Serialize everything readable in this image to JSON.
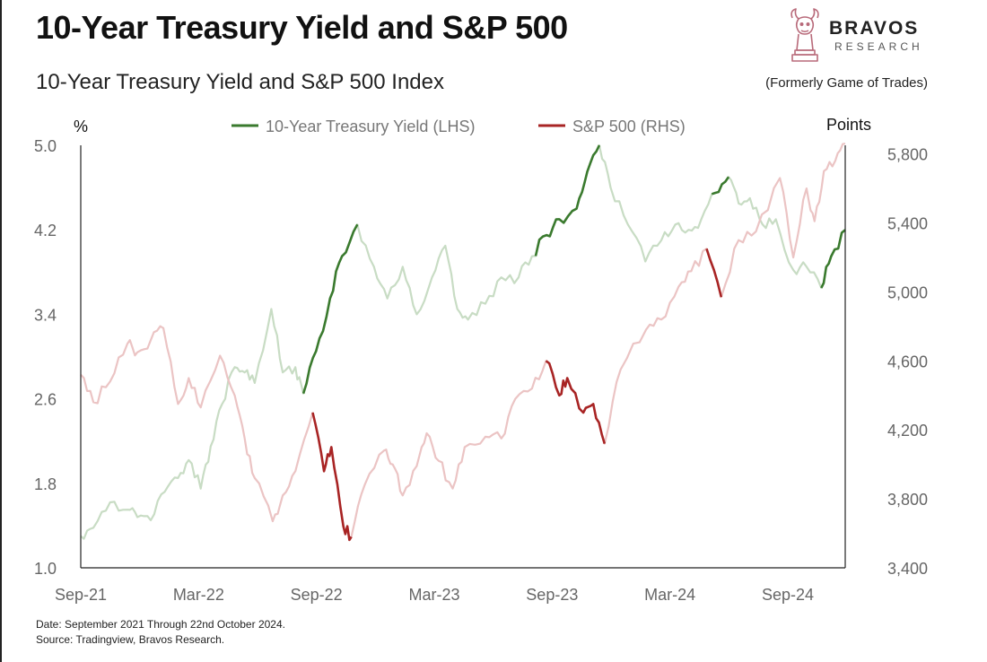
{
  "header": {
    "title": "10-Year Treasury Yield and S&P 500",
    "subtitle": "10-Year Treasury Yield and S&P 500 Index"
  },
  "brand": {
    "name": "BRAVOS",
    "sub": "RESEARCH",
    "formerly": "(Formerly Game of Trades)",
    "color": "#b86a7a"
  },
  "footer": {
    "date_note": "Date: September 2021 Through 22nd October 2024.",
    "source_note": "Source: Tradingview, Bravos Research."
  },
  "chart_data": {
    "type": "line",
    "title": "10-Year Treasury Yield and S&P 500 Index",
    "y_left_label": "%",
    "y_right_label": "Points",
    "y_left_ticks": [
      "5.0",
      "4.2",
      "3.4",
      "2.6",
      "1.8",
      "1.0"
    ],
    "y_left_range": [
      1.0,
      5.0
    ],
    "y_right_ticks": [
      "5,800",
      "5,400",
      "5,000",
      "4,600",
      "4,200",
      "3,800",
      "3,400"
    ],
    "y_right_range": [
      3400,
      5850
    ],
    "x_ticks": [
      "Sep-21",
      "Mar-22",
      "Sep-22",
      "Mar-23",
      "Sep-23",
      "Mar-24",
      "Sep-24"
    ],
    "x_range": [
      "2021-09-01",
      "2024-10-22"
    ],
    "legend_position": "top-center",
    "grid": false,
    "series": [
      {
        "name": "10-Year Treasury Yield (LHS)",
        "axis": "left",
        "color": "#3a7a2e",
        "faded_color": "#c8dcc4",
        "highlight_ranges": [
          [
            "2022-08-01",
            "2022-10-21"
          ],
          [
            "2023-07-15",
            "2023-10-19"
          ],
          [
            "2024-04-01",
            "2024-04-30"
          ],
          [
            "2024-09-16",
            "2024-10-22"
          ]
        ],
        "x": [
          "2021-09-01",
          "2021-09-20",
          "2021-10-15",
          "2021-11-10",
          "2021-11-25",
          "2021-12-15",
          "2022-01-05",
          "2022-01-25",
          "2022-02-10",
          "2022-02-28",
          "2022-03-15",
          "2022-04-01",
          "2022-04-20",
          "2022-05-05",
          "2022-05-20",
          "2022-06-14",
          "2022-07-01",
          "2022-07-20",
          "2022-08-01",
          "2022-08-20",
          "2022-09-10",
          "2022-09-28",
          "2022-10-21",
          "2022-11-15",
          "2022-12-05",
          "2022-12-28",
          "2023-01-18",
          "2023-02-10",
          "2023-03-02",
          "2023-03-20",
          "2023-04-05",
          "2023-05-01",
          "2023-05-25",
          "2023-06-20",
          "2023-07-10",
          "2023-08-01",
          "2023-08-20",
          "2023-09-15",
          "2023-10-01",
          "2023-10-19",
          "2023-11-05",
          "2023-12-01",
          "2023-12-27",
          "2024-01-20",
          "2024-02-10",
          "2024-03-01",
          "2024-03-20",
          "2024-04-10",
          "2024-04-30",
          "2024-05-15",
          "2024-06-01",
          "2024-06-20",
          "2024-07-10",
          "2024-08-05",
          "2024-08-25",
          "2024-09-16",
          "2024-10-01",
          "2024-10-22"
        ],
        "values": [
          1.3,
          1.38,
          1.62,
          1.55,
          1.48,
          1.45,
          1.72,
          1.85,
          2.02,
          1.75,
          2.15,
          2.55,
          2.9,
          2.85,
          2.75,
          3.45,
          2.85,
          2.9,
          2.65,
          3.05,
          3.55,
          3.95,
          4.25,
          3.85,
          3.55,
          3.85,
          3.4,
          3.75,
          4.05,
          3.45,
          3.35,
          3.5,
          3.75,
          3.75,
          3.95,
          4.15,
          4.3,
          4.4,
          4.75,
          5.0,
          4.6,
          4.25,
          3.9,
          4.1,
          4.25,
          4.2,
          4.3,
          4.55,
          4.7,
          4.45,
          4.5,
          4.25,
          4.3,
          3.82,
          3.85,
          3.65,
          3.95,
          4.2
        ]
      },
      {
        "name": "S&P 500 (RHS)",
        "axis": "right",
        "color": "#a82424",
        "faded_color": "#ebc4c4",
        "highlight_ranges": [
          [
            "2022-08-15",
            "2022-10-12"
          ],
          [
            "2023-07-31",
            "2023-10-27"
          ],
          [
            "2024-03-28",
            "2024-04-19"
          ]
        ],
        "x": [
          "2021-09-01",
          "2021-09-20",
          "2021-10-15",
          "2021-11-10",
          "2021-11-25",
          "2021-12-15",
          "2022-01-03",
          "2022-01-25",
          "2022-02-10",
          "2022-02-28",
          "2022-03-29",
          "2022-04-20",
          "2022-05-05",
          "2022-05-20",
          "2022-06-16",
          "2022-07-01",
          "2022-07-20",
          "2022-08-15",
          "2022-09-01",
          "2022-09-12",
          "2022-09-30",
          "2022-10-12",
          "2022-11-01",
          "2022-11-30",
          "2022-12-13",
          "2022-12-28",
          "2023-01-18",
          "2023-02-02",
          "2023-02-20",
          "2023-03-13",
          "2023-03-31",
          "2023-05-01",
          "2023-05-25",
          "2023-06-15",
          "2023-07-10",
          "2023-07-31",
          "2023-08-20",
          "2023-09-01",
          "2023-09-25",
          "2023-10-10",
          "2023-10-27",
          "2023-11-20",
          "2023-12-28",
          "2024-01-20",
          "2024-02-15",
          "2024-03-05",
          "2024-03-28",
          "2024-04-19",
          "2024-05-15",
          "2024-06-10",
          "2024-07-16",
          "2024-08-05",
          "2024-08-25",
          "2024-09-06",
          "2024-09-20",
          "2024-10-07",
          "2024-10-22"
        ],
        "values": [
          4520,
          4360,
          4480,
          4700,
          4650,
          4720,
          4790,
          4350,
          4500,
          4330,
          4630,
          4400,
          4150,
          3920,
          3670,
          3820,
          3960,
          4300,
          3960,
          4100,
          3640,
          3580,
          3880,
          4080,
          4000,
          3820,
          3990,
          4180,
          4020,
          3860,
          4100,
          4160,
          4150,
          4380,
          4440,
          4600,
          4400,
          4500,
          4300,
          4350,
          4120,
          4550,
          4780,
          4840,
          5030,
          5120,
          5250,
          4970,
          5300,
          5350,
          5660,
          5200,
          5600,
          5410,
          5700,
          5760,
          5860
        ]
      }
    ]
  }
}
